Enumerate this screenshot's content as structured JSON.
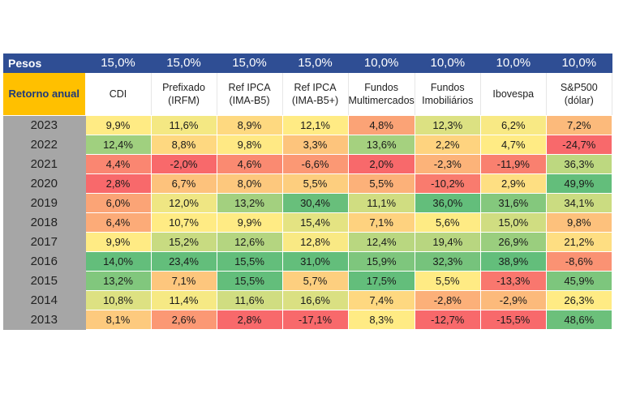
{
  "colors": {
    "header_bg": "#2f4e94",
    "corner_label_bg": "#ffc000",
    "year_column_bg": "#a6a6a6",
    "scale_low": "#f8696b",
    "scale_mid": "#ffeb84",
    "scale_high": "#63be7b"
  },
  "chart_data": {
    "type": "heatmap",
    "weights_label": "Pesos",
    "row_header_label": "Retorno anual",
    "weights": [
      "15,0%",
      "15,0%",
      "15,0%",
      "15,0%",
      "10,0%",
      "10,0%",
      "10,0%",
      "10,0%"
    ],
    "columns": [
      [
        "CDI"
      ],
      [
        "Prefixado",
        "(IRFM)"
      ],
      [
        "Ref IPCA",
        "(IMA-B5)"
      ],
      [
        "Ref IPCA",
        "(IMA-B5+)"
      ],
      [
        "Fundos",
        "Multimercados"
      ],
      [
        "Fundos",
        "Imobiliários"
      ],
      [
        "Ibovespa"
      ],
      [
        "S&P500",
        "(dólar)"
      ]
    ],
    "rows": [
      {
        "year": "2023",
        "values": [
          "9,9%",
          "11,6%",
          "8,9%",
          "12,1%",
          "4,8%",
          "12,3%",
          "6,2%",
          "7,2%"
        ]
      },
      {
        "year": "2022",
        "values": [
          "12,4%",
          "8,8%",
          "9,8%",
          "3,3%",
          "13,6%",
          "2,2%",
          "4,7%",
          "-24,7%"
        ]
      },
      {
        "year": "2021",
        "values": [
          "4,4%",
          "-2,0%",
          "4,6%",
          "-6,6%",
          "2,0%",
          "-2,3%",
          "-11,9%",
          "36,3%"
        ]
      },
      {
        "year": "2020",
        "values": [
          "2,8%",
          "6,7%",
          "8,0%",
          "5,5%",
          "5,5%",
          "-10,2%",
          "2,9%",
          "49,9%"
        ]
      },
      {
        "year": "2019",
        "values": [
          "6,0%",
          "12,0%",
          "13,2%",
          "30,4%",
          "11,1%",
          "36,0%",
          "31,6%",
          "34,1%"
        ]
      },
      {
        "year": "2018",
        "values": [
          "6,4%",
          "10,7%",
          "9,9%",
          "15,4%",
          "7,1%",
          "5,6%",
          "15,0%",
          "9,8%"
        ]
      },
      {
        "year": "2017",
        "values": [
          "9,9%",
          "15,2%",
          "12,6%",
          "12,8%",
          "12,4%",
          "19,4%",
          "26,9%",
          "21,2%"
        ]
      },
      {
        "year": "2016",
        "values": [
          "14,0%",
          "23,4%",
          "15,5%",
          "31,0%",
          "15,9%",
          "32,3%",
          "38,9%",
          "-8,6%"
        ]
      },
      {
        "year": "2015",
        "values": [
          "13,2%",
          "7,1%",
          "15,5%",
          "5,7%",
          "17,5%",
          "5,5%",
          "-13,3%",
          "45,9%"
        ]
      },
      {
        "year": "2014",
        "values": [
          "10,8%",
          "11,4%",
          "11,6%",
          "16,6%",
          "7,4%",
          "-2,8%",
          "-2,9%",
          "26,3%"
        ]
      },
      {
        "year": "2013",
        "values": [
          "8,1%",
          "2,6%",
          "2,8%",
          "-17,1%",
          "8,3%",
          "-12,7%",
          "-15,5%",
          "48,6%"
        ]
      }
    ]
  }
}
